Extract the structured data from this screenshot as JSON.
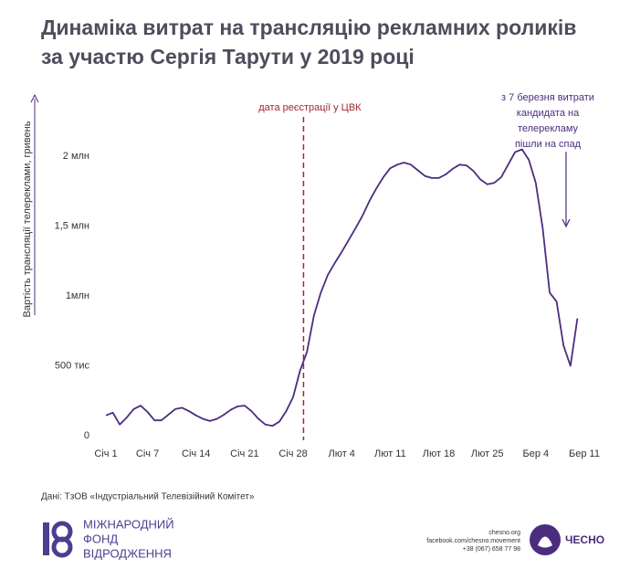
{
  "chart_data": {
    "type": "line",
    "title": [
      "Динаміка витрат на трансляцію рекламних роликів",
      "за участю Сергія Тарути у 2019 році"
    ],
    "y_label": "Вартість трансляції телереклами, гривень",
    "categories": [
      "Січ 1",
      null,
      null,
      null,
      null,
      null,
      "Січ 7",
      null,
      null,
      null,
      null,
      null,
      null,
      "Січ 14",
      null,
      null,
      null,
      null,
      null,
      null,
      "Січ 21",
      null,
      null,
      null,
      null,
      null,
      null,
      "Січ 28",
      null,
      null,
      null,
      null,
      null,
      null,
      "Лют 4",
      null,
      null,
      null,
      null,
      null,
      null,
      "Лют 11",
      null,
      null,
      null,
      null,
      null,
      null,
      "Лют 18",
      null,
      null,
      null,
      null,
      null,
      null,
      "Лют 25",
      null,
      null,
      null,
      null,
      null,
      null,
      "Бер 4",
      null,
      null,
      null,
      null,
      null,
      null,
      "Бер 11"
    ],
    "values": [
      145000,
      165000,
      80000,
      130000,
      190000,
      215000,
      170000,
      110000,
      110000,
      150000,
      190000,
      200000,
      175000,
      145000,
      120000,
      105000,
      120000,
      150000,
      185000,
      210000,
      215000,
      175000,
      120000,
      80000,
      70000,
      100000,
      175000,
      275000,
      465000,
      600000,
      860000,
      1025000,
      1150000,
      1235000,
      1315000,
      1400000,
      1485000,
      1575000,
      1680000,
      1770000,
      1850000,
      1915000,
      1940000,
      1955000,
      1940000,
      1900000,
      1860000,
      1845000,
      1845000,
      1870000,
      1910000,
      1940000,
      1935000,
      1895000,
      1835000,
      1800000,
      1810000,
      1850000,
      1940000,
      2030000,
      2050000,
      1975000,
      1810000,
      1485000,
      1025000,
      960000,
      645000,
      500000,
      840000,
      null
    ],
    "color": "#4b2d7f",
    "ylim": [
      0,
      2400000
    ],
    "yticks": [
      0,
      {
        "value": 500000,
        "label": "500 тис"
      },
      {
        "value": 1000000,
        "label": "1млн"
      },
      {
        "value": 1500000,
        "label": "1,5 млн"
      },
      {
        "value": 2000000,
        "label": "2 млн"
      }
    ],
    "grid": false,
    "annotations": [
      {
        "text": [
          "дата реєстрації у ЦВК"
        ],
        "color": "#a3262a"
      },
      {
        "text": [
          "з 7 березня витрати",
          "кандидата на",
          "телерекламу",
          "пішли на спад"
        ],
        "color": "#4b2d7f"
      }
    ],
    "source": "Дані: ТзОВ «Індустріальний Телевізійний Комітет»",
    "footer": {
      "left": [
        "МІЖНАРОДНИЙ",
        "ФОНД",
        "ВІДРОДЖЕННЯ"
      ],
      "contacts": [
        "chesno.org",
        "facebook.com/chesno.movement",
        "+38 (067) 658 77 98"
      ],
      "brand": "ЧЕСНО"
    }
  }
}
